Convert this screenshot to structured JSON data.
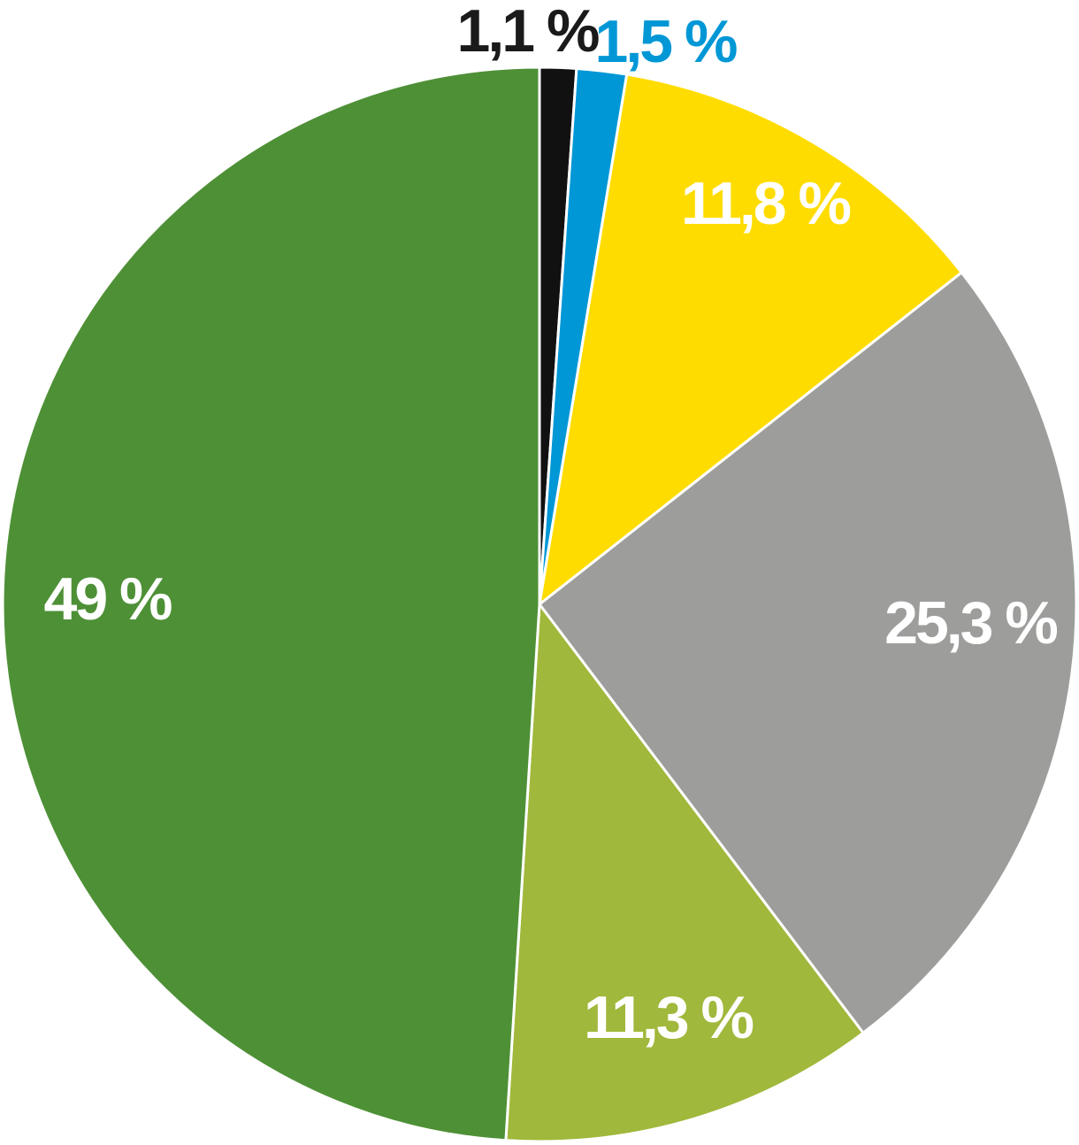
{
  "chart_data": {
    "type": "pie",
    "title": "",
    "start_angle_deg": 0,
    "direction": "clockwise",
    "slices": [
      {
        "value": 1.1,
        "label": "1,1 %",
        "color": "#111111",
        "label_color": "#1a1a1a"
      },
      {
        "value": 1.5,
        "label": "1,5 %",
        "color": "#0097d6",
        "label_color": "#0097d6"
      },
      {
        "value": 11.8,
        "label": "11,8 %",
        "color": "#ffdc00",
        "label_color": "#ffffff"
      },
      {
        "value": 25.3,
        "label": "25,3 %",
        "color": "#9d9d9b",
        "label_color": "#ffffff"
      },
      {
        "value": 11.3,
        "label": "11,3 %",
        "color": "#a0b83b",
        "label_color": "#ffffff"
      },
      {
        "value": 49,
        "label": "49 %",
        "color": "#4e9036",
        "label_color": "#ffffff"
      }
    ],
    "separator_color": "#ffffff"
  }
}
